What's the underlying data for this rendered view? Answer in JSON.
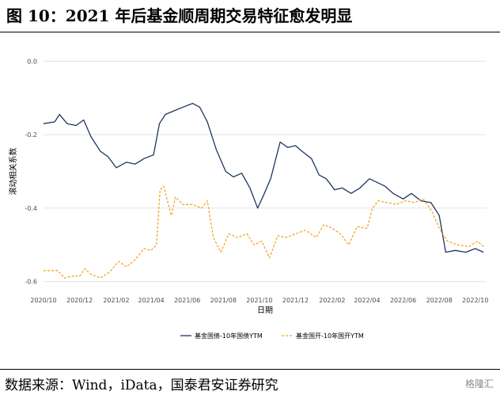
{
  "header": {
    "title": "图 10：2021 年后基金顺周期交易特征愈发明显"
  },
  "footer": {
    "source": "数据来源：Wind，iData，国泰君安证券研究",
    "watermark": "格隆汇"
  },
  "colors": {
    "series1": "#1f3564",
    "series2": "#f5a623",
    "grid": "#d9d9d9"
  },
  "chart_data": {
    "type": "line",
    "xlabel": "日期",
    "ylabel": "滚动相关系数",
    "x_ticks": [
      "2020/10",
      "2020/12",
      "2021/02",
      "2021/04",
      "2021/06",
      "2021/08",
      "2021/10",
      "2021/12",
      "2022/02",
      "2022/04",
      "2022/06",
      "2022/08",
      "2022/10"
    ],
    "y_ticks": [
      "0.0",
      "-0.2",
      "-0.4",
      "-0.6"
    ],
    "y_tick_values": [
      0.0,
      -0.2,
      -0.4,
      -0.6
    ],
    "ylim": [
      -0.62,
      0.02
    ],
    "xlim": [
      "2020-10-01",
      "2022-10-20"
    ],
    "grid": "horizontal",
    "legend_position": "bottom",
    "series": [
      {
        "name": "基金国债-10年国债YTM",
        "color": "#1f3564",
        "style": "solid",
        "points": [
          [
            "2020-10-01",
            -0.17
          ],
          [
            "2020-10-20",
            -0.165
          ],
          [
            "2020-10-28",
            -0.145
          ],
          [
            "2020-11-10",
            -0.17
          ],
          [
            "2020-11-25",
            -0.175
          ],
          [
            "2020-12-08",
            -0.16
          ],
          [
            "2020-12-20",
            -0.205
          ],
          [
            "2021-01-05",
            -0.245
          ],
          [
            "2021-01-18",
            -0.26
          ],
          [
            "2021-02-01",
            -0.29
          ],
          [
            "2021-02-18",
            -0.275
          ],
          [
            "2021-03-05",
            -0.28
          ],
          [
            "2021-03-20",
            -0.265
          ],
          [
            "2021-04-05",
            -0.255
          ],
          [
            "2021-04-15",
            -0.17
          ],
          [
            "2021-04-25",
            -0.145
          ],
          [
            "2021-05-10",
            -0.135
          ],
          [
            "2021-05-25",
            -0.125
          ],
          [
            "2021-06-10",
            -0.115
          ],
          [
            "2021-06-22",
            -0.125
          ],
          [
            "2021-07-05",
            -0.165
          ],
          [
            "2021-07-20",
            -0.24
          ],
          [
            "2021-08-05",
            -0.3
          ],
          [
            "2021-08-18",
            -0.315
          ],
          [
            "2021-09-01",
            -0.305
          ],
          [
            "2021-09-15",
            -0.345
          ],
          [
            "2021-09-28",
            -0.4
          ],
          [
            "2021-10-08",
            -0.365
          ],
          [
            "2021-10-20",
            -0.32
          ],
          [
            "2021-11-05",
            -0.22
          ],
          [
            "2021-11-18",
            -0.235
          ],
          [
            "2021-12-01",
            -0.23
          ],
          [
            "2021-12-12",
            -0.245
          ],
          [
            "2021-12-28",
            -0.265
          ],
          [
            "2022-01-10",
            -0.31
          ],
          [
            "2022-01-22",
            -0.32
          ],
          [
            "2022-02-05",
            -0.35
          ],
          [
            "2022-02-18",
            -0.345
          ],
          [
            "2022-03-05",
            -0.36
          ],
          [
            "2022-03-20",
            -0.345
          ],
          [
            "2022-04-05",
            -0.32
          ],
          [
            "2022-04-18",
            -0.33
          ],
          [
            "2022-05-01",
            -0.34
          ],
          [
            "2022-05-15",
            -0.36
          ],
          [
            "2022-06-01",
            -0.375
          ],
          [
            "2022-06-15",
            -0.36
          ],
          [
            "2022-07-01",
            -0.38
          ],
          [
            "2022-07-18",
            -0.385
          ],
          [
            "2022-08-01",
            -0.42
          ],
          [
            "2022-08-12",
            -0.52
          ],
          [
            "2022-08-28",
            -0.515
          ],
          [
            "2022-09-15",
            -0.52
          ],
          [
            "2022-10-01",
            -0.51
          ],
          [
            "2022-10-15",
            -0.52
          ]
        ]
      },
      {
        "name": "基金国开-10年国开YTM",
        "color": "#f5a623",
        "style": "dashed",
        "points": [
          [
            "2020-10-01",
            -0.57
          ],
          [
            "2020-10-25",
            -0.57
          ],
          [
            "2020-11-05",
            -0.59
          ],
          [
            "2020-11-18",
            -0.585
          ],
          [
            "2020-12-01",
            -0.585
          ],
          [
            "2020-12-10",
            -0.565
          ],
          [
            "2020-12-20",
            -0.58
          ],
          [
            "2021-01-05",
            -0.59
          ],
          [
            "2021-01-20",
            -0.575
          ],
          [
            "2021-02-05",
            -0.545
          ],
          [
            "2021-02-18",
            -0.56
          ],
          [
            "2021-03-05",
            -0.54
          ],
          [
            "2021-03-20",
            -0.51
          ],
          [
            "2021-04-01",
            -0.515
          ],
          [
            "2021-04-10",
            -0.5
          ],
          [
            "2021-04-16",
            -0.35
          ],
          [
            "2021-04-22",
            -0.34
          ],
          [
            "2021-05-05",
            -0.42
          ],
          [
            "2021-05-12",
            -0.37
          ],
          [
            "2021-05-25",
            -0.39
          ],
          [
            "2021-06-10",
            -0.39
          ],
          [
            "2021-06-25",
            -0.4
          ],
          [
            "2021-07-05",
            -0.38
          ],
          [
            "2021-07-15",
            -0.48
          ],
          [
            "2021-07-28",
            -0.52
          ],
          [
            "2021-08-10",
            -0.47
          ],
          [
            "2021-08-25",
            -0.48
          ],
          [
            "2021-09-10",
            -0.47
          ],
          [
            "2021-09-22",
            -0.5
          ],
          [
            "2021-10-05",
            -0.49
          ],
          [
            "2021-10-18",
            -0.535
          ],
          [
            "2021-11-01",
            -0.475
          ],
          [
            "2021-11-15",
            -0.48
          ],
          [
            "2021-12-01",
            -0.47
          ],
          [
            "2021-12-18",
            -0.46
          ],
          [
            "2022-01-05",
            -0.48
          ],
          [
            "2022-01-18",
            -0.445
          ],
          [
            "2022-02-01",
            -0.455
          ],
          [
            "2022-02-15",
            -0.47
          ],
          [
            "2022-03-01",
            -0.5
          ],
          [
            "2022-03-15",
            -0.45
          ],
          [
            "2022-04-01",
            -0.455
          ],
          [
            "2022-04-10",
            -0.4
          ],
          [
            "2022-04-20",
            -0.38
          ],
          [
            "2022-05-05",
            -0.385
          ],
          [
            "2022-05-20",
            -0.39
          ],
          [
            "2022-06-05",
            -0.38
          ],
          [
            "2022-06-20",
            -0.385
          ],
          [
            "2022-07-05",
            -0.375
          ],
          [
            "2022-07-20",
            -0.41
          ],
          [
            "2022-08-01",
            -0.455
          ],
          [
            "2022-08-15",
            -0.49
          ],
          [
            "2022-09-01",
            -0.5
          ],
          [
            "2022-09-20",
            -0.505
          ],
          [
            "2022-10-05",
            -0.49
          ],
          [
            "2022-10-15",
            -0.505
          ]
        ]
      }
    ]
  }
}
